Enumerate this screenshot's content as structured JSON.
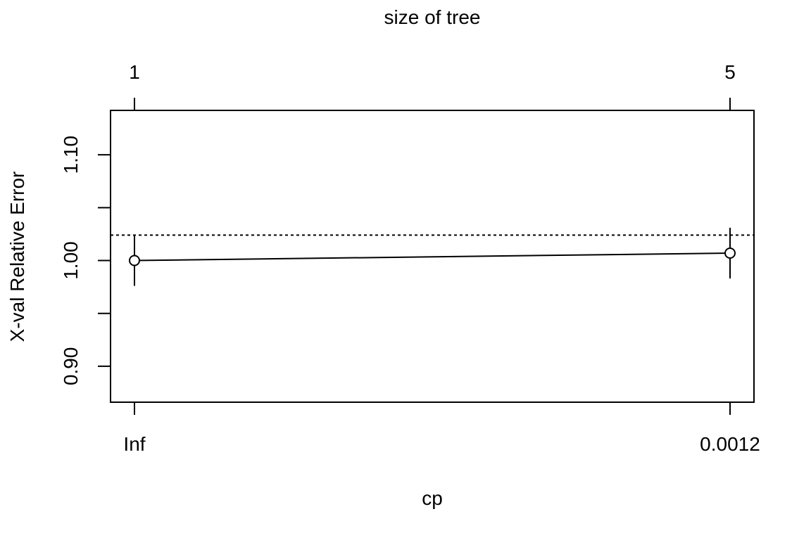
{
  "chart_data": {
    "type": "line",
    "top_axis_label": "size of tree",
    "top_tick_labels": [
      "1",
      "5"
    ],
    "xlabel": "cp",
    "ylabel": "X-val Relative Error",
    "categories": [
      "Inf",
      "0.0012"
    ],
    "series": [
      {
        "values": [
          1.0,
          1.007
        ],
        "error_low": [
          0.976,
          0.983
        ],
        "error_high": [
          1.024,
          1.031
        ]
      }
    ],
    "reference_line": 1.024,
    "ylim": [
      0.866,
      1.142
    ],
    "y_ticks": [
      0.9,
      0.95,
      1.0,
      1.05,
      1.1
    ],
    "y_tick_labels": [
      "0.90",
      "",
      "1.00",
      "",
      "1.10"
    ],
    "grid": false,
    "colors": {
      "line": "#000000",
      "background": "#ffffff"
    }
  }
}
